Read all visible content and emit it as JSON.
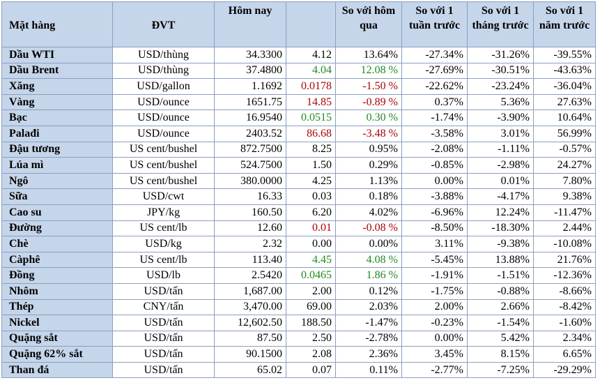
{
  "headers": {
    "name": "Mặt hàng",
    "unit": "ĐVT",
    "today": "Hôm nay",
    "change": "",
    "vs_yesterday": "So với hôm qua",
    "vs_week": "So với 1 tuần trước",
    "vs_month": "So với 1 tháng trước",
    "vs_year": "So với 1 năm trước"
  },
  "colors": {
    "header_bg": "#c5d5ea",
    "up": "#1f8a1f",
    "down": "#b00000",
    "border": "#8a9fc0"
  },
  "rows": [
    {
      "name": "Dầu WTI",
      "unit": "USD/thùng",
      "today": "34.3300",
      "change": "4.12",
      "day": "13.64%",
      "week": "-27.34%",
      "month": "-31.26%",
      "year": "-39.55%",
      "trend": "flat"
    },
    {
      "name": "Dầu Brent",
      "unit": "USD/thùng",
      "today": "37.4800",
      "change": "4.04",
      "day": "12.08 %",
      "week": "-27.69%",
      "month": "-30.51%",
      "year": "-43.63%",
      "trend": "up"
    },
    {
      "name": "Xăng",
      "unit": "USD/gallon",
      "today": "1.1692",
      "change": "0.0178",
      "day": "-1.50 %",
      "week": "-22.62%",
      "month": "-23.24%",
      "year": "-36.04%",
      "trend": "down"
    },
    {
      "name": "Vàng",
      "unit": "USD/ounce",
      "today": "1651.75",
      "change": "14.85",
      "day": "-0.89 %",
      "week": "0.37%",
      "month": "5.36%",
      "year": "27.63%",
      "trend": "down"
    },
    {
      "name": "Bạc",
      "unit": "USD/ounce",
      "today": "16.9540",
      "change": "0.0515",
      "day": "0.30 %",
      "week": "-1.74%",
      "month": "-3.90%",
      "year": "10.64%",
      "trend": "up"
    },
    {
      "name": "Palađi",
      "unit": "USD/ounce",
      "today": "2403.52",
      "change": "86.68",
      "day": "-3.48 %",
      "week": "-3.58%",
      "month": "3.01%",
      "year": "56.99%",
      "trend": "down"
    },
    {
      "name": "Đậu tương",
      "unit": "US cent/bushel",
      "today": "872.7500",
      "change": "8.25",
      "day": "0.95%",
      "week": "-2.08%",
      "month": "-1.11%",
      "year": "-0.57%",
      "trend": "flat"
    },
    {
      "name": "Lúa mì",
      "unit": "US cent/bushel",
      "today": "524.7500",
      "change": "1.50",
      "day": "0.29%",
      "week": "-0.85%",
      "month": "-2.98%",
      "year": "24.27%",
      "trend": "flat"
    },
    {
      "name": "Ngô",
      "unit": "US cent/bushel",
      "today": "380.0000",
      "change": "4.25",
      "day": "1.13%",
      "week": "0.00%",
      "month": "0.01%",
      "year": "7.80%",
      "trend": "flat"
    },
    {
      "name": "Sữa",
      "unit": "USD/cwt",
      "today": "16.33",
      "change": "0.03",
      "day": "0.18%",
      "week": "-3.88%",
      "month": "-4.17%",
      "year": "9.38%",
      "trend": "flat"
    },
    {
      "name": "Cao su",
      "unit": "JPY/kg",
      "today": "160.50",
      "change": "6.20",
      "day": "4.02%",
      "week": "-6.96%",
      "month": "12.24%",
      "year": "-11.47%",
      "trend": "flat"
    },
    {
      "name": "Đường",
      "unit": "US cent/lb",
      "today": "12.60",
      "change": "0.01",
      "day": "-0.08 %",
      "week": "-8.50%",
      "month": "-18.30%",
      "year": "2.44%",
      "trend": "down"
    },
    {
      "name": "Chè",
      "unit": "USD/kg",
      "today": "2.32",
      "change": "0.00",
      "day": "0.00%",
      "week": "3.11%",
      "month": "-9.38%",
      "year": "-10.08%",
      "trend": "flat"
    },
    {
      "name": "Càphê",
      "unit": "US cent/lb",
      "today": "113.40",
      "change": "4.45",
      "day": "4.08 %",
      "week": "-5.45%",
      "month": "13.88%",
      "year": "21.76%",
      "trend": "up"
    },
    {
      "name": "Đồng",
      "unit": "USD/lb",
      "today": "2.5420",
      "change": "0.0465",
      "day": "1.86 %",
      "week": "-1.91%",
      "month": "-1.51%",
      "year": "-12.36%",
      "trend": "up"
    },
    {
      "name": "Nhôm",
      "unit": "USD/tấn",
      "today": "1,687.00",
      "change": "2.00",
      "day": "0.12%",
      "week": "-1.75%",
      "month": "-0.88%",
      "year": "-8.66%",
      "trend": "flat"
    },
    {
      "name": "Thép",
      "unit": "CNY/tấn",
      "today": "3,470.00",
      "change": "69.00",
      "day": "2.03%",
      "week": "2.00%",
      "month": "2.66%",
      "year": "-8.42%",
      "trend": "flat"
    },
    {
      "name": "Nickel",
      "unit": "USD/tấn",
      "today": "12,602.50",
      "change": "188.50",
      "day": "-1.47%",
      "week": "-0.23%",
      "month": "-1.54%",
      "year": "-1.60%",
      "trend": "flat"
    },
    {
      "name": "Quặng sắt",
      "unit": "USD/tấn",
      "today": "87.50",
      "change": "2.50",
      "day": "-2.78%",
      "week": "0.00%",
      "month": "5.42%",
      "year": "2.34%",
      "trend": "flat"
    },
    {
      "name": "Quặng 62% sắt",
      "unit": "USD/tấn",
      "today": "90.1500",
      "change": "2.08",
      "day": "2.36%",
      "week": "3.45%",
      "month": "8.15%",
      "year": "6.65%",
      "trend": "flat"
    },
    {
      "name": "Than đá",
      "unit": "USD/tấn",
      "today": "65.02",
      "change": "0.07",
      "day": "0.11%",
      "week": "-2.77%",
      "month": "-7.25%",
      "year": "-29.29%",
      "trend": "flat"
    }
  ]
}
